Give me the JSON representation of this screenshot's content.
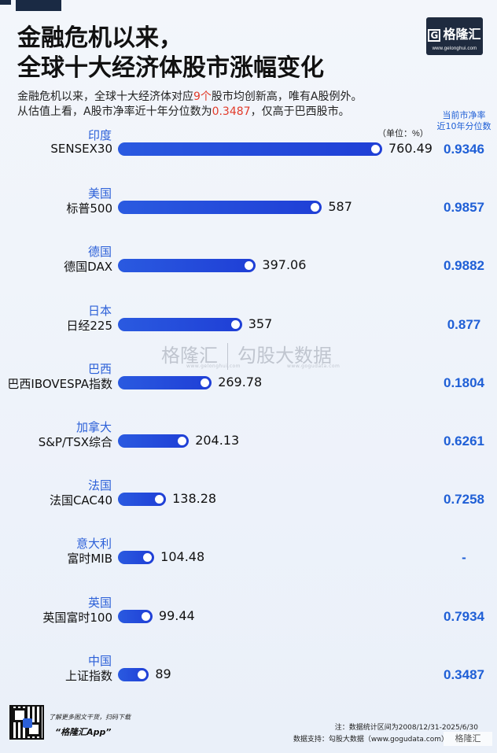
{
  "header": {
    "title_line1": "金融危机以来，",
    "title_line2": "全球十大经济体股市涨幅变化",
    "sub_line1_a": "金融危机以来，全球十大经济体对应",
    "sub_line1_red": "9个",
    "sub_line1_b": "股市均创新高，唯有A股例外。",
    "sub_line2_a": "从估值上看，A股市净率近十年分位数为",
    "sub_line2_red": "0.3487",
    "sub_line2_b": "，仅高于巴西股市。"
  },
  "logo": {
    "text": "格隆汇",
    "icon_letter": "G",
    "url": "www.gelonghui.com"
  },
  "right_column_header": {
    "line1": "当前市净率",
    "line2": "近10年分位数"
  },
  "unit_label": "（单位：%）",
  "watermark": {
    "brand1": "格隆汇",
    "brand1_url": "www.gelonghui.com",
    "brand2": "勾股大数据",
    "brand2_url": "www.gogudata.com"
  },
  "chart_data": {
    "type": "bar",
    "orientation": "horizontal",
    "unit": "%",
    "categories": [
      {
        "country": "印度",
        "index": "SENSEX30"
      },
      {
        "country": "美国",
        "index": "标普500"
      },
      {
        "country": "德国",
        "index": "德国DAX"
      },
      {
        "country": "日本",
        "index": "日经225"
      },
      {
        "country": "巴西",
        "index": "巴西IBOVESPA指数"
      },
      {
        "country": "加拿大",
        "index": "S&P/TSX综合"
      },
      {
        "country": "法国",
        "index": "法国CAC40"
      },
      {
        "country": "意大利",
        "index": "富时MIB"
      },
      {
        "country": "英国",
        "index": "英国富时100"
      },
      {
        "country": "中国",
        "index": "上证指数"
      }
    ],
    "values": [
      760.49,
      587,
      397.06,
      357,
      269.78,
      204.13,
      138.28,
      104.48,
      99.44,
      89
    ],
    "value_labels": [
      "760.49",
      "587",
      "397.06",
      "357",
      "269.78",
      "204.13",
      "138.28",
      "104.48",
      "99.44",
      "89"
    ],
    "pb_percentile_labels": [
      "0.9346",
      "0.9857",
      "0.9882",
      "0.877",
      "0.1804",
      "0.6261",
      "0.7258",
      "-",
      "0.7934",
      "0.3487"
    ],
    "colors": {
      "bar": "#2a5ae0",
      "country": "#2c60d8",
      "percentile": "#1f5fd6",
      "highlight": "#e23b2b"
    }
  },
  "footer": {
    "qr_caption1": "了解更多图文干货，扫码下载",
    "qr_caption2": "“格隆汇App”",
    "note": "注：数据统计区间为2008/12/31-2025/6/30",
    "source": "数据支持：勾股大数据（www.gogudata.com）",
    "corner_brand": "格隆汇"
  }
}
